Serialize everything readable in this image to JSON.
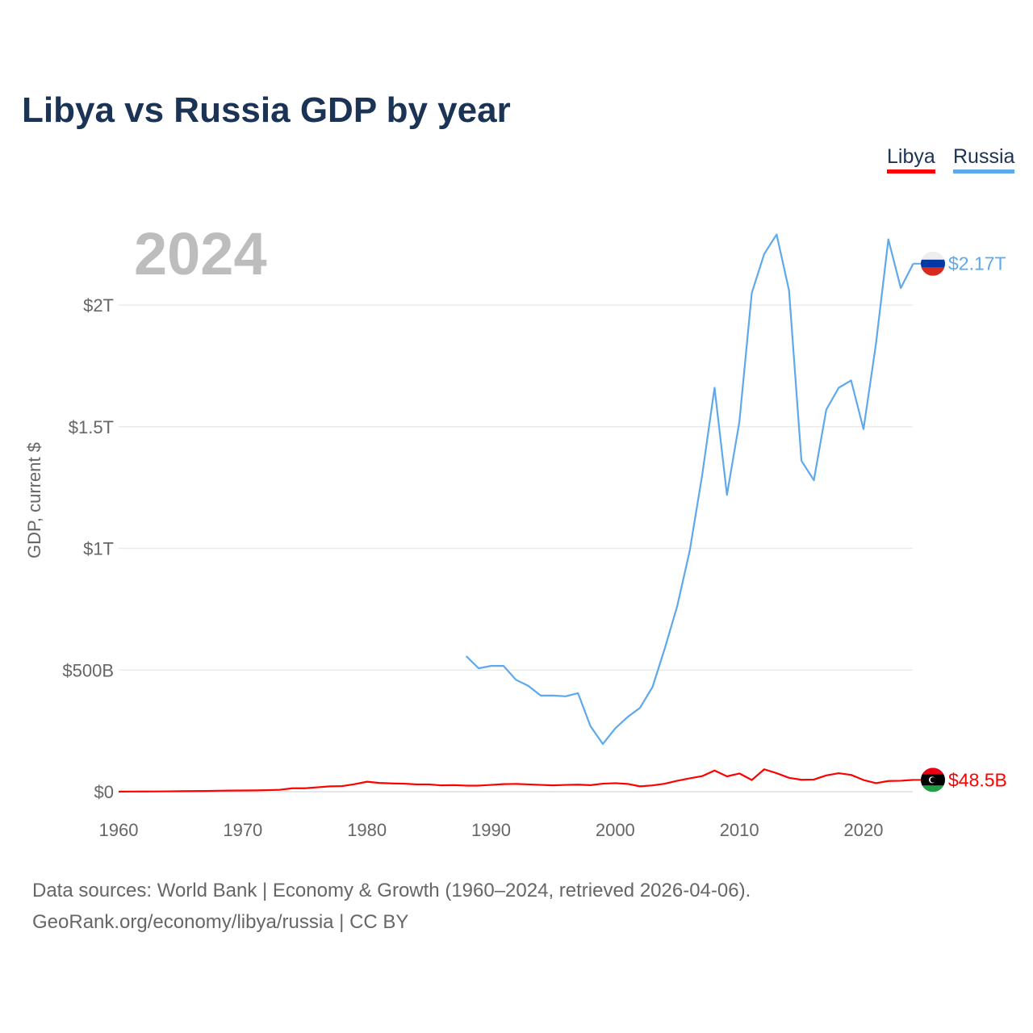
{
  "chart_data": {
    "type": "line",
    "title": "Libya vs Russia GDP by year",
    "ylabel": "GDP, current $",
    "xlabel": "",
    "xlim": [
      1960,
      2024
    ],
    "ylim": [
      0,
      2.4
    ],
    "y_unit": "trillion USD",
    "grid": true,
    "legend_placement": "top-right",
    "x_ticks": [
      1960,
      1970,
      1980,
      1990,
      2000,
      2010,
      2020
    ],
    "x_tick_labels": [
      "1960",
      "1970",
      "1980",
      "1990",
      "2000",
      "2010",
      "2020"
    ],
    "y_ticks": [
      0,
      0.5,
      1,
      1.5,
      2
    ],
    "y_tick_labels": [
      "$0",
      "$500B",
      "$1T",
      "$1.5T",
      "$2T"
    ],
    "highlight_year": "2024",
    "series": [
      {
        "name": "Libya",
        "color": "#ff0000",
        "end_label": "$48.5B",
        "start_year": 1960,
        "values_billions": [
          0.5,
          0.7,
          0.9,
          1.1,
          1.5,
          2,
          2.5,
          3,
          4,
          4.5,
          5,
          5.5,
          6.5,
          8,
          14,
          14,
          18,
          22,
          23,
          31,
          41,
          36,
          34,
          33,
          30,
          30,
          26,
          27,
          25,
          25,
          28,
          31,
          32,
          30,
          28,
          26,
          28,
          29,
          27,
          33,
          35,
          32,
          22,
          26,
          33,
          45,
          55,
          64,
          87,
          63,
          75,
          48,
          92,
          76,
          57,
          49,
          50,
          67,
          76,
          69,
          48,
          35,
          44,
          45,
          48.5
        ]
      },
      {
        "name": "Russia",
        "color": "#5ea8ec",
        "end_label": "$2.17T",
        "start_year": 1988,
        "values_trillions": [
          0.557,
          0.507,
          0.517,
          0.517,
          0.46,
          0.435,
          0.395,
          0.395,
          0.392,
          0.405,
          0.27,
          0.196,
          0.26,
          0.307,
          0.345,
          0.43,
          0.59,
          0.764,
          0.99,
          1.3,
          1.66,
          1.22,
          1.52,
          2.05,
          2.21,
          2.29,
          2.06,
          1.36,
          1.28,
          1.57,
          1.66,
          1.69,
          1.49,
          1.84,
          2.27,
          2.07,
          2.17
        ]
      }
    ],
    "source_line1": "Data sources: World Bank | Economy & Growth (1960–2024, retrieved 2026-04-06).",
    "source_line2": "GeoRank.org/economy/libya/russia | CC BY"
  }
}
